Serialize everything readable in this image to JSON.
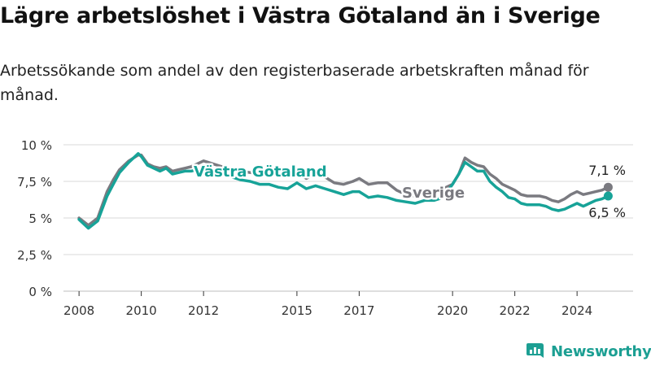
{
  "title": "Lägre arbetslöshet i Västra Götaland än i Sverige",
  "subtitle": "Arbetssökande som andel av den registerbaserade arbetskraften månad för månad.",
  "brand": {
    "name": "Newsworthy",
    "icon": "newsworthy-logo-icon"
  },
  "colors": {
    "vg": "#17a398",
    "sverige": "#7a7a80",
    "grid": "#d9d9d9",
    "brand": "#1c9f93"
  },
  "chart_data": {
    "type": "line",
    "title": "Lägre arbetslöshet i Västra Götaland än i Sverige",
    "ylim": [
      0,
      10
    ],
    "xlim": [
      2007.5,
      2025.8
    ],
    "yticks": [
      {
        "value": 0,
        "label": "0 %"
      },
      {
        "value": 2.5,
        "label": "2,5 %"
      },
      {
        "value": 5,
        "label": "5 %"
      },
      {
        "value": 7.5,
        "label": "7,5 %"
      },
      {
        "value": 10,
        "label": "10 %"
      }
    ],
    "xticks": [
      {
        "value": 2008,
        "label": "2008"
      },
      {
        "value": 2010,
        "label": "2010"
      },
      {
        "value": 2012,
        "label": "2012"
      },
      {
        "value": 2015,
        "label": "2015"
      },
      {
        "value": 2017,
        "label": "2017"
      },
      {
        "value": 2020,
        "label": "2020"
      },
      {
        "value": 2022,
        "label": "2022"
      },
      {
        "value": 2024,
        "label": "2024"
      }
    ],
    "grid": true,
    "series": [
      {
        "name": "Sverige",
        "color": "#7a7a80",
        "end_label": "7,1 %",
        "x": [
          2008.0,
          2008.3,
          2008.6,
          2008.9,
          2009.1,
          2009.3,
          2009.6,
          2009.9,
          2010.0,
          2010.2,
          2010.4,
          2010.6,
          2010.8,
          2011.0,
          2011.2,
          2011.4,
          2011.6,
          2011.8,
          2012.0,
          2012.3,
          2012.6,
          2012.9,
          2013.2,
          2013.5,
          2013.8,
          2014.1,
          2014.4,
          2014.7,
          2015.0,
          2015.3,
          2015.6,
          2015.9,
          2016.2,
          2016.5,
          2016.8,
          2017.0,
          2017.3,
          2017.6,
          2017.9,
          2018.2,
          2018.5,
          2018.8,
          2019.1,
          2019.4,
          2019.7,
          2020.0,
          2020.2,
          2020.4,
          2020.6,
          2020.8,
          2021.0,
          2021.2,
          2021.4,
          2021.6,
          2021.8,
          2022.0,
          2022.2,
          2022.4,
          2022.6,
          2022.8,
          2023.0,
          2023.2,
          2023.4,
          2023.6,
          2023.8,
          2024.0,
          2024.2,
          2024.4,
          2024.6,
          2024.8,
          2025.0
        ],
        "y": [
          5.0,
          4.5,
          5.0,
          6.8,
          7.6,
          8.3,
          8.9,
          9.3,
          9.3,
          8.7,
          8.5,
          8.4,
          8.5,
          8.2,
          8.3,
          8.4,
          8.5,
          8.7,
          8.9,
          8.7,
          8.5,
          8.3,
          8.2,
          8.1,
          8.0,
          8.0,
          7.9,
          7.9,
          8.1,
          7.7,
          8.0,
          7.8,
          7.4,
          7.3,
          7.5,
          7.7,
          7.3,
          7.4,
          7.4,
          6.9,
          6.6,
          6.5,
          6.7,
          6.8,
          7.0,
          7.3,
          8.0,
          9.1,
          8.8,
          8.6,
          8.5,
          8.0,
          7.7,
          7.3,
          7.1,
          6.9,
          6.6,
          6.5,
          6.5,
          6.5,
          6.4,
          6.2,
          6.1,
          6.3,
          6.6,
          6.8,
          6.6,
          6.7,
          6.8,
          6.9,
          7.1
        ]
      },
      {
        "name": "Västra Götaland",
        "color": "#17a398",
        "end_label": "6,5 %",
        "x": [
          2008.0,
          2008.3,
          2008.6,
          2008.9,
          2009.1,
          2009.3,
          2009.6,
          2009.9,
          2010.0,
          2010.2,
          2010.4,
          2010.6,
          2010.8,
          2011.0,
          2011.2,
          2011.4,
          2011.6,
          2011.8,
          2012.0,
          2012.3,
          2012.6,
          2012.9,
          2013.2,
          2013.5,
          2013.8,
          2014.1,
          2014.4,
          2014.7,
          2015.0,
          2015.3,
          2015.6,
          2015.9,
          2016.2,
          2016.5,
          2016.8,
          2017.0,
          2017.3,
          2017.6,
          2017.9,
          2018.2,
          2018.5,
          2018.8,
          2019.1,
          2019.4,
          2019.7,
          2020.0,
          2020.2,
          2020.4,
          2020.6,
          2020.8,
          2021.0,
          2021.2,
          2021.4,
          2021.6,
          2021.8,
          2022.0,
          2022.2,
          2022.4,
          2022.6,
          2022.8,
          2023.0,
          2023.2,
          2023.4,
          2023.6,
          2023.8,
          2024.0,
          2024.2,
          2024.4,
          2024.6,
          2024.8,
          2025.0
        ],
        "y": [
          4.9,
          4.3,
          4.8,
          6.5,
          7.3,
          8.1,
          8.8,
          9.4,
          9.2,
          8.6,
          8.4,
          8.2,
          8.4,
          8.0,
          8.1,
          8.2,
          8.2,
          8.3,
          8.4,
          8.2,
          8.0,
          7.8,
          7.6,
          7.5,
          7.3,
          7.3,
          7.1,
          7.0,
          7.4,
          7.0,
          7.2,
          7.0,
          6.8,
          6.6,
          6.8,
          6.8,
          6.4,
          6.5,
          6.4,
          6.2,
          6.1,
          6.0,
          6.2,
          6.2,
          6.4,
          7.3,
          8.0,
          8.8,
          8.5,
          8.2,
          8.2,
          7.5,
          7.1,
          6.8,
          6.4,
          6.3,
          6.0,
          5.9,
          5.9,
          5.9,
          5.8,
          5.6,
          5.5,
          5.6,
          5.8,
          6.0,
          5.8,
          6.0,
          6.2,
          6.3,
          6.5
        ]
      }
    ],
    "annotations": [
      {
        "series": "Västra Götaland",
        "text": "Västra Götaland"
      },
      {
        "series": "Sverige",
        "text": "Sverige"
      }
    ]
  }
}
